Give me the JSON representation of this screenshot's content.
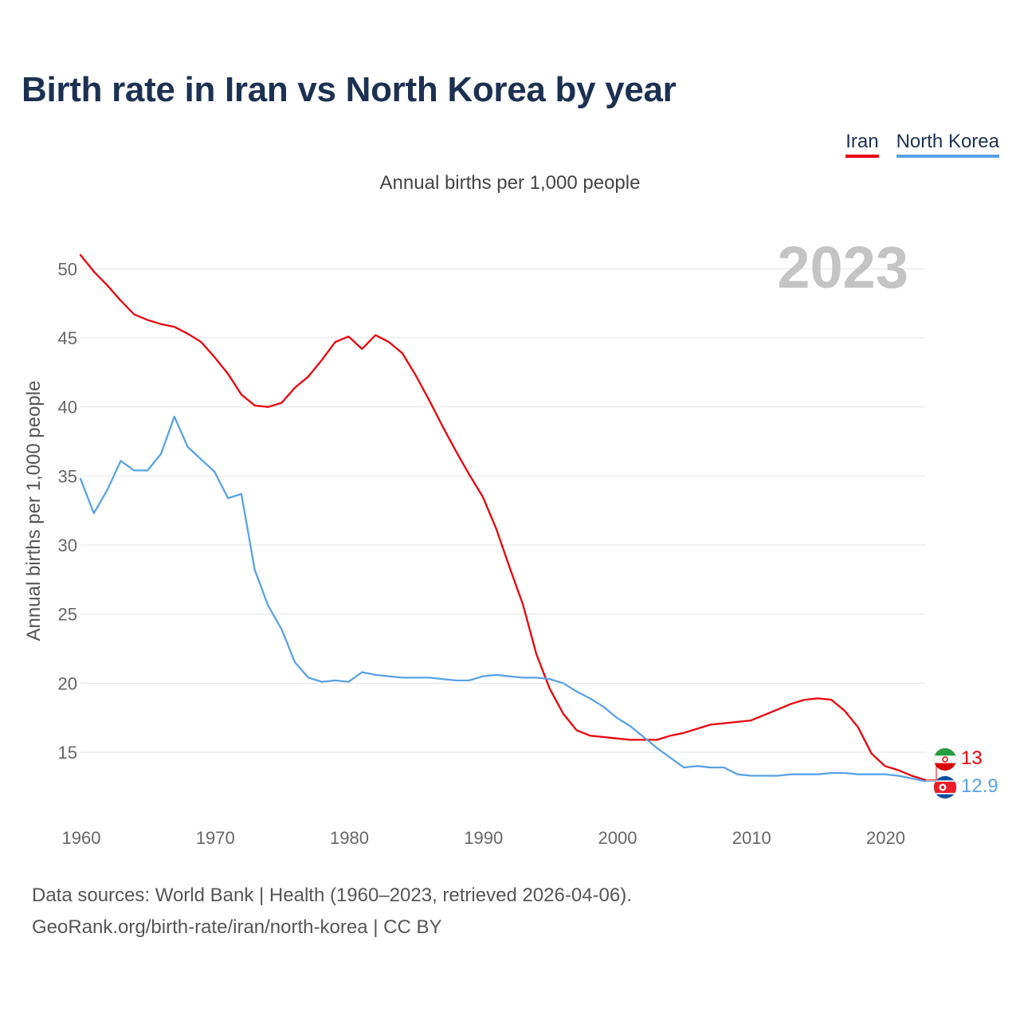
{
  "chart_data": {
    "type": "line",
    "title": "Birth rate in Iran vs North Korea by year",
    "subtitle": "Annual births per 1,000 people",
    "ylabel": "Annual births per 1,000 people",
    "xlabel": "",
    "year_watermark": "2023",
    "xlim": [
      1960,
      2023
    ],
    "ylim": [
      10.5,
      52.5
    ],
    "x_ticks": [
      1960,
      1970,
      1980,
      1990,
      2000,
      2010,
      2020
    ],
    "y_ticks": [
      15,
      20,
      25,
      30,
      35,
      40,
      45,
      50
    ],
    "grid": true,
    "legend_position": "top-right",
    "x": [
      1960,
      1961,
      1962,
      1963,
      1964,
      1965,
      1966,
      1967,
      1968,
      1969,
      1970,
      1971,
      1972,
      1973,
      1974,
      1975,
      1976,
      1977,
      1978,
      1979,
      1980,
      1981,
      1982,
      1983,
      1984,
      1985,
      1986,
      1987,
      1988,
      1989,
      1990,
      1991,
      1992,
      1993,
      1994,
      1995,
      1996,
      1997,
      1998,
      1999,
      2000,
      2001,
      2002,
      2003,
      2004,
      2005,
      2006,
      2007,
      2008,
      2009,
      2010,
      2011,
      2012,
      2013,
      2014,
      2015,
      2016,
      2017,
      2018,
      2019,
      2020,
      2021,
      2022,
      2023
    ],
    "series": [
      {
        "name": "Iran",
        "color": "#e8000b",
        "end_label": "13",
        "flag": "iran",
        "values": [
          51.0,
          49.8,
          48.8,
          47.7,
          46.7,
          46.3,
          46.0,
          45.8,
          45.3,
          44.7,
          43.6,
          42.4,
          40.9,
          40.1,
          40.0,
          40.3,
          41.4,
          42.2,
          43.4,
          44.7,
          45.1,
          44.2,
          45.2,
          44.7,
          43.9,
          42.3,
          40.5,
          38.6,
          36.8,
          35.1,
          33.5,
          31.2,
          28.4,
          25.7,
          22.1,
          19.6,
          17.8,
          16.6,
          16.2,
          16.1,
          16.0,
          15.9,
          15.9,
          15.9,
          16.2,
          16.4,
          16.7,
          17.0,
          17.1,
          17.2,
          17.3,
          17.7,
          18.1,
          18.5,
          18.8,
          18.9,
          18.8,
          18.0,
          16.8,
          14.9,
          14.0,
          13.7,
          13.3,
          13.0
        ]
      },
      {
        "name": "North Korea",
        "color": "#5aa2e6",
        "end_label": "12.9",
        "flag": "north-korea",
        "values": [
          34.8,
          32.3,
          34.0,
          36.1,
          35.4,
          35.4,
          36.6,
          39.3,
          37.1,
          36.2,
          35.3,
          33.4,
          33.7,
          28.2,
          25.6,
          23.9,
          21.5,
          20.4,
          20.1,
          20.2,
          20.1,
          20.8,
          20.6,
          20.5,
          20.4,
          20.4,
          20.4,
          20.3,
          20.2,
          20.2,
          20.5,
          20.6,
          20.5,
          20.4,
          20.4,
          20.3,
          20.0,
          19.4,
          18.9,
          18.3,
          17.5,
          16.9,
          16.1,
          15.3,
          14.6,
          13.9,
          14.0,
          13.9,
          13.9,
          13.4,
          13.3,
          13.3,
          13.3,
          13.4,
          13.4,
          13.4,
          13.5,
          13.5,
          13.4,
          13.4,
          13.4,
          13.3,
          13.1,
          12.9
        ]
      }
    ]
  },
  "footer": {
    "line1": "Data sources: World Bank | Health (1960–2023, retrieved 2026-04-06).",
    "line2": "GeoRank.org/birth-rate/iran/north-korea | CC BY"
  }
}
